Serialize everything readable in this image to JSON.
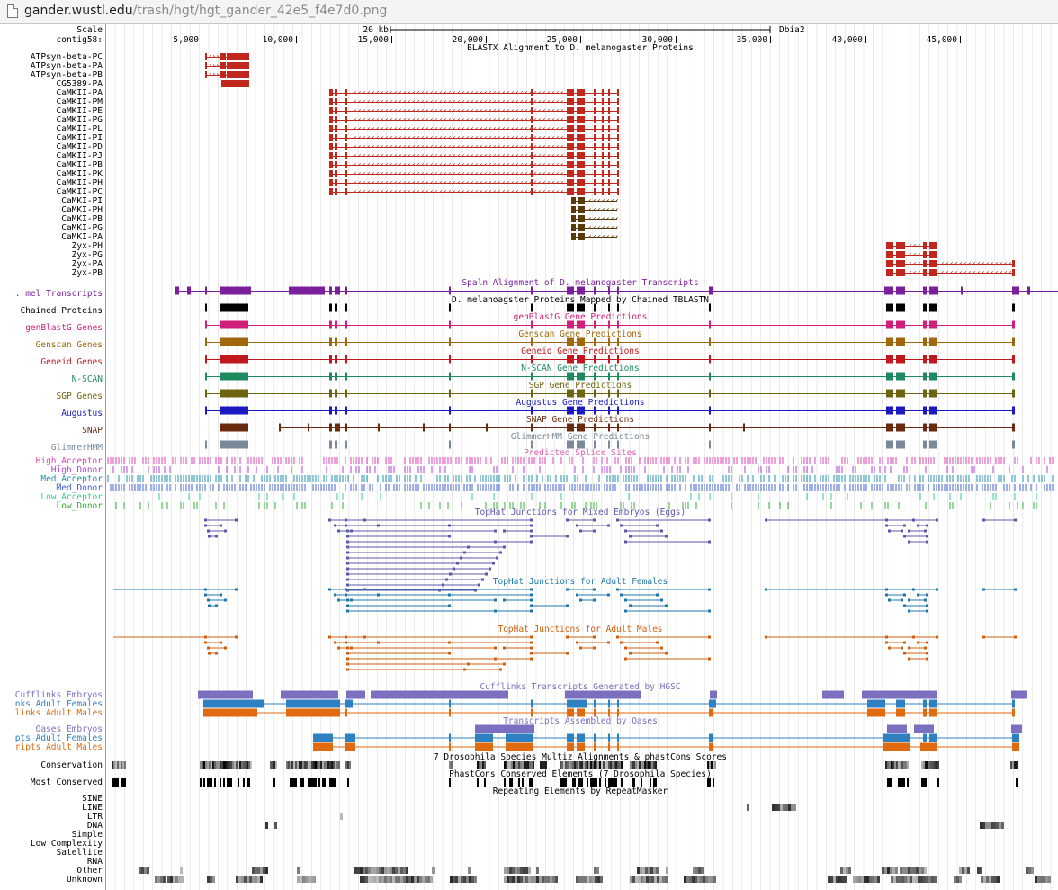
{
  "browser": {
    "url_host": "gander.wustl.edu",
    "url_path": "/trash/hgt/hgt_gander_42e5_f4e7d0.png"
  },
  "ruler": {
    "scale_label": "Scale",
    "scale_value": "20 kb",
    "assembly": "Dbia2",
    "contig_label": "contig58:",
    "ticks": [
      "5,000",
      "10,000",
      "15,000",
      "20,000",
      "25,000",
      "30,000",
      "35,000",
      "40,000",
      "45,000"
    ]
  },
  "tracks": {
    "blastx_title": "BLASTX Alignment to D. melanogaster Proteins",
    "protein_rows": [
      "ATPsyn-beta-PC",
      "ATPsyn-beta-PA",
      "ATPsyn-beta-PB",
      "CG5389-PA",
      "CaMKII-PA",
      "CaMKII-PM",
      "CaMKII-PE",
      "CaMKII-PG",
      "CaMKII-PL",
      "CaMKII-PI",
      "CaMKII-PD",
      "CaMKII-PJ",
      "CaMKII-PB",
      "CaMKII-PK",
      "CaMKII-PH",
      "CaMKII-PC",
      "CaMKI-PI",
      "CaMKI-PH",
      "CaMKI-PB",
      "CaMKI-PG",
      "CaMKI-PA",
      "Zyx-PH",
      "Zyx-PG",
      "Zyx-PA",
      "Zyx-PB"
    ],
    "gene_tracks": [
      {
        "label": ". mel Transcripts",
        "title": "Spaln Alignment of D. melanogaster Transcripts",
        "color": "#7b1f9c"
      },
      {
        "label": "Chained Proteins",
        "title": "D. melanoagster Proteins Mapped by Chained TBLASTN",
        "color": "#000000"
      },
      {
        "label": "genBlastG Genes",
        "title": "genBlastG Gene Predictions",
        "color": "#d1207a"
      },
      {
        "label": "Genscan Genes",
        "title": "Genscan Gene Predictions",
        "color": "#a0670c"
      },
      {
        "label": "Geneid Genes",
        "title": "Geneid Gene Predictions",
        "color": "#c0181e"
      },
      {
        "label": "N-SCAN",
        "title": "N-SCAN Gene Predictions",
        "color": "#1f8a60"
      },
      {
        "label": "SGP Genes",
        "title": "SGP Gene Predictions",
        "color": "#6e6310"
      },
      {
        "label": "Augustus",
        "title": "Augustus Gene Predictions",
        "color": "#1a1ac0"
      },
      {
        "label": "SNAP",
        "title": "SNAP Gene Predictions",
        "color": "#6a2a10"
      },
      {
        "label": "GlimmerHMM",
        "title": "GlimmerHMM Gene Predictions",
        "color": "#7a8898"
      }
    ],
    "splice_title": "Predicted Splice Sites",
    "splice_rows": [
      {
        "label": "High_Acceptor",
        "color": "#e040b0"
      },
      {
        "label": "High_Donor",
        "color": "#b040d0"
      },
      {
        "label": "Med_Acceptor",
        "color": "#2090b0"
      },
      {
        "label": "Med_Donor",
        "color": "#4060d0"
      },
      {
        "label": "Low_Acceptor",
        "color": "#30d090"
      },
      {
        "label": "Low_Donor",
        "color": "#30b030"
      }
    ],
    "tophat": [
      {
        "title": "TopHat Junctions for Mixed Embryos (Eggs)",
        "color": "#5c58a8"
      },
      {
        "title": "TopHat Junctions for Adult Females",
        "color": "#1f78a8"
      },
      {
        "title": "TopHat Junctions for Adult Males",
        "color": "#d06010"
      }
    ],
    "cufflinks_title": "Cufflinks Transcripts Generated by HGSC",
    "cufflinks_rows": [
      {
        "label": "Cufflinks Embryos",
        "color": "#7b6fc0"
      },
      {
        "label": "nks Adult Females",
        "color": "#2f80c0"
      },
      {
        "label": "links Adult Males",
        "color": "#e06a10"
      }
    ],
    "oases_title": "Transcripts Assembled by Oases",
    "oases_rows": [
      {
        "label": "Oases Embryos",
        "color": "#7b6fc0"
      },
      {
        "label": "pts Adult Females",
        "color": "#2f80c0"
      },
      {
        "label": "ripts Adult Males",
        "color": "#e06a10"
      }
    ],
    "multiz_title": "7 Drosophila Species Multiz Alignments & phastCons Scores",
    "conservation_label": "Conservation",
    "phastcons_title": "PhastCons Conserved Elements (7 Drosophila Species)",
    "most_conserved_label": "Most Conserved",
    "repeat_title": "Repeating Elements by RepeatMasker",
    "repeat_rows": [
      "SINE",
      "LINE",
      "LTR",
      "DNA",
      "Simple",
      "Low Complexity",
      "Satellite",
      "RNA",
      "Other",
      "Unknown"
    ]
  },
  "colors": {
    "blastx_red": "#c0281e",
    "camki_brown": "#5a3a0a",
    "grid": "#d8d8d8",
    "left_border": "#e08080"
  }
}
